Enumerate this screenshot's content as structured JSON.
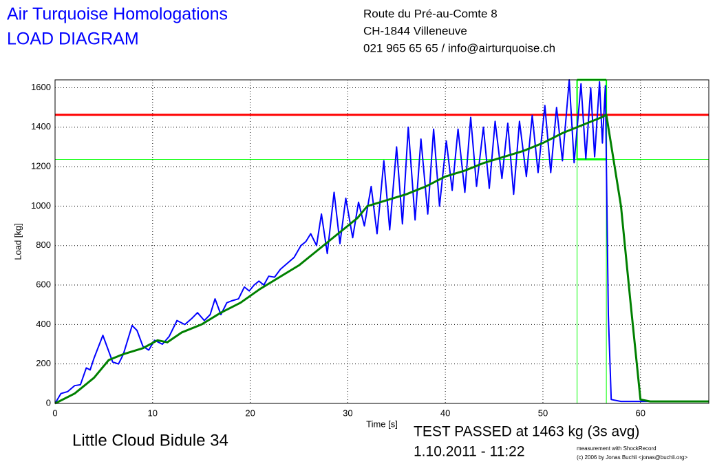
{
  "header": {
    "title": "Air Turquoise Homologations",
    "subtitle": "LOAD DIAGRAM",
    "address": [
      "Route du Pré-au-Comte 8",
      "CH-1844 Villeneuve",
      "021 965 65 65 / info@airturquoise.ch"
    ]
  },
  "footer": {
    "product": "Little Cloud Bidule 34",
    "result": "TEST PASSED at 1463 kg (3s avg)",
    "date": "1.10.2011 - 11:22",
    "credit": [
      "measurement with ShockRecord",
      "(c) 2006 by Jonas Buchli <jonas@buchli.org>"
    ]
  },
  "chart_data": {
    "type": "line",
    "x_label": "Time [s]",
    "y_label": "Load [kg]",
    "xlim": [
      0,
      67
    ],
    "ylim": [
      0,
      1640
    ],
    "xticks": [
      0,
      10,
      20,
      30,
      40,
      50,
      60
    ],
    "yticks": [
      0,
      200,
      400,
      600,
      800,
      1000,
      1200,
      1400,
      1600
    ],
    "grid": true,
    "series": [
      {
        "color": "#0000ff",
        "x": [
          0,
          0.6,
          1.3,
          2.0,
          2.6,
          3.2,
          3.6,
          4.0,
          4.9,
          5.9,
          6.5,
          7.0,
          7.9,
          8.4,
          9.0,
          9.6,
          10.2,
          11.0,
          11.7,
          12.5,
          13.3,
          14.0,
          14.6,
          15.3,
          15.9,
          16.4,
          17.0,
          17.6,
          18.1,
          18.8,
          19.4,
          19.9,
          20.4,
          20.9,
          21.4,
          21.9,
          22.5,
          23.1,
          23.8,
          24.5,
          25.2,
          25.7,
          26.2,
          26.8,
          27.3,
          27.9,
          28.6,
          29.2,
          29.8,
          30.5,
          31.1,
          31.7,
          32.4,
          33.0,
          33.7,
          34.3,
          35.0,
          35.6,
          36.2,
          36.9,
          37.5,
          38.2,
          38.8,
          39.4,
          40.1,
          40.7,
          41.3,
          42.0,
          42.6,
          43.2,
          43.9,
          44.5,
          45.1,
          45.8,
          46.4,
          47.0,
          47.6,
          48.3,
          48.9,
          49.5,
          50.2,
          50.8,
          51.4,
          52.0,
          52.7,
          53.2,
          53.9,
          54.4,
          54.9,
          55.3,
          55.8,
          56.1,
          56.4,
          56.7,
          57.0,
          58.0,
          67.0
        ],
        "values": [
          0,
          50,
          60,
          90,
          95,
          180,
          170,
          230,
          345,
          210,
          200,
          250,
          395,
          370,
          290,
          270,
          320,
          300,
          340,
          420,
          400,
          430,
          460,
          420,
          450,
          530,
          450,
          510,
          520,
          530,
          590,
          570,
          600,
          620,
          600,
          645,
          640,
          680,
          710,
          740,
          800,
          820,
          860,
          800,
          960,
          760,
          1070,
          810,
          1040,
          840,
          1020,
          900,
          1100,
          860,
          1230,
          880,
          1300,
          910,
          1400,
          930,
          1340,
          960,
          1390,
          1000,
          1330,
          1080,
          1390,
          1070,
          1450,
          1100,
          1400,
          1090,
          1430,
          1140,
          1420,
          1060,
          1430,
          1150,
          1460,
          1170,
          1510,
          1170,
          1500,
          1230,
          1640,
          1220,
          1620,
          1240,
          1600,
          1250,
          1630,
          1320,
          1610,
          450,
          20,
          10,
          10
        ]
      },
      {
        "color": "#008000",
        "x": [
          0,
          2,
          4,
          5.5,
          7,
          9,
          10.5,
          11.5,
          13,
          15,
          17,
          19,
          21,
          23,
          25,
          27,
          29,
          31,
          32,
          34,
          36,
          38,
          40,
          42,
          44,
          46,
          48,
          50,
          52,
          54,
          56,
          56.5,
          58,
          59,
          60,
          61,
          67
        ],
        "values": [
          0,
          50,
          130,
          220,
          250,
          280,
          320,
          310,
          360,
          400,
          460,
          510,
          580,
          640,
          700,
          780,
          860,
          940,
          1000,
          1030,
          1060,
          1100,
          1150,
          1180,
          1220,
          1250,
          1280,
          1320,
          1370,
          1410,
          1450,
          1463,
          1000,
          500,
          20,
          10,
          10
        ]
      }
    ],
    "max_line": {
      "value": 1463,
      "color": "#ff0000"
    },
    "window": {
      "x": [
        53.5,
        56.5
      ],
      "y": [
        1237,
        1640
      ],
      "color": "#00ff00"
    }
  }
}
